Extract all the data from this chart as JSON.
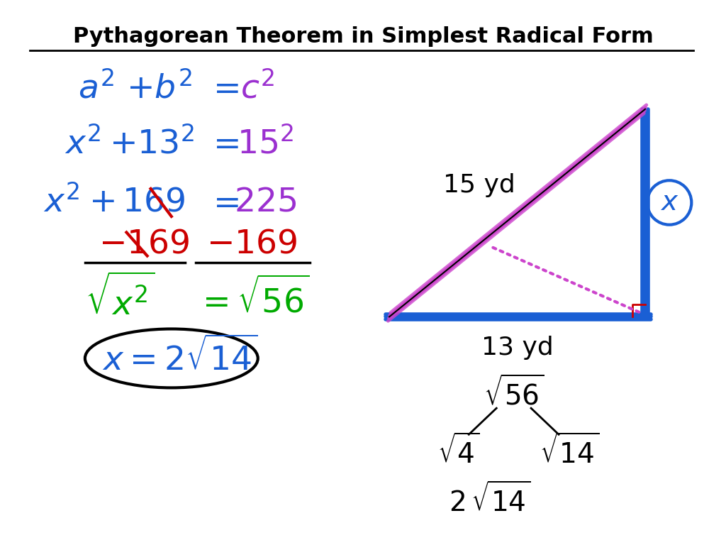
{
  "title": "Pythagorean Theorem in Simplest Radical Form",
  "bg_color": "#ffffff",
  "title_color": "#000000",
  "blue": "#1a5fd4",
  "purple": "#9b30d0",
  "red": "#cc0000",
  "green": "#00aa00",
  "black": "#000000",
  "magenta": "#cc44aa"
}
